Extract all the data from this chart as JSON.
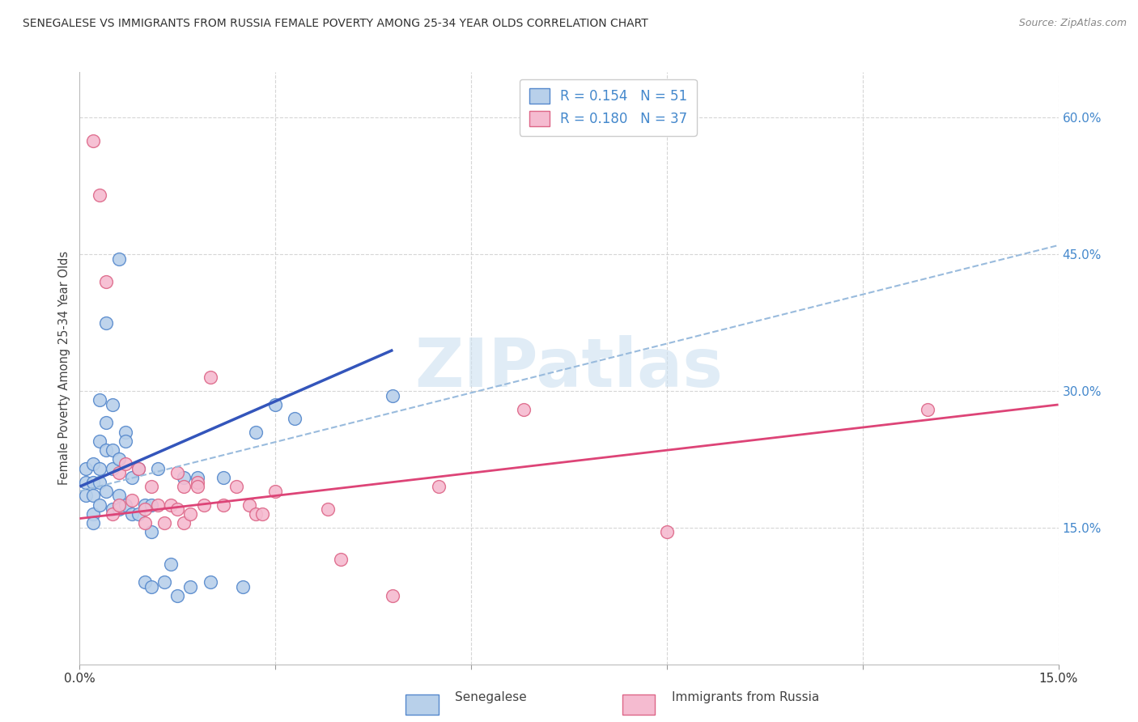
{
  "title": "SENEGALESE VS IMMIGRANTS FROM RUSSIA FEMALE POVERTY AMONG 25-34 YEAR OLDS CORRELATION CHART",
  "source": "Source: ZipAtlas.com",
  "ylabel": "Female Poverty Among 25-34 Year Olds",
  "xlim": [
    0.0,
    0.15
  ],
  "ylim": [
    0.0,
    0.65
  ],
  "xticks": [
    0.0,
    0.03,
    0.06,
    0.09,
    0.12,
    0.15
  ],
  "yticks_right": [
    0.0,
    0.15,
    0.3,
    0.45,
    0.6
  ],
  "ytick_labels_right": [
    "",
    "15.0%",
    "30.0%",
    "45.0%",
    "60.0%"
  ],
  "xtick_labels": [
    "0.0%",
    "",
    "",
    "",
    "",
    "15.0%"
  ],
  "background_color": "#ffffff",
  "grid_color": "#cccccc",
  "blue_scatter_face": "#b8d0ea",
  "blue_scatter_edge": "#5588cc",
  "pink_scatter_face": "#f5bbd0",
  "pink_scatter_edge": "#dd6688",
  "blue_line_color": "#3355bb",
  "pink_line_color": "#dd4477",
  "dashed_line_color": "#99bbdd",
  "legend_R1": "0.154",
  "legend_N1": "51",
  "legend_R2": "0.180",
  "legend_N2": "37",
  "label1": "Senegalese",
  "label2": "Immigrants from Russia",
  "senegalese_x": [
    0.001,
    0.001,
    0.001,
    0.002,
    0.002,
    0.002,
    0.002,
    0.002,
    0.003,
    0.003,
    0.003,
    0.003,
    0.003,
    0.004,
    0.004,
    0.004,
    0.004,
    0.005,
    0.005,
    0.005,
    0.005,
    0.006,
    0.006,
    0.006,
    0.006,
    0.007,
    0.007,
    0.007,
    0.008,
    0.008,
    0.009,
    0.009,
    0.01,
    0.01,
    0.011,
    0.011,
    0.011,
    0.012,
    0.013,
    0.014,
    0.015,
    0.016,
    0.017,
    0.018,
    0.02,
    0.022,
    0.025,
    0.027,
    0.03,
    0.033,
    0.048
  ],
  "senegalese_y": [
    0.215,
    0.2,
    0.185,
    0.22,
    0.2,
    0.185,
    0.165,
    0.155,
    0.29,
    0.245,
    0.215,
    0.2,
    0.175,
    0.375,
    0.265,
    0.235,
    0.19,
    0.285,
    0.235,
    0.215,
    0.17,
    0.445,
    0.225,
    0.185,
    0.17,
    0.255,
    0.245,
    0.175,
    0.205,
    0.165,
    0.215,
    0.165,
    0.175,
    0.09,
    0.145,
    0.085,
    0.175,
    0.215,
    0.09,
    0.11,
    0.075,
    0.205,
    0.085,
    0.205,
    0.09,
    0.205,
    0.085,
    0.255,
    0.285,
    0.27,
    0.295
  ],
  "russia_x": [
    0.002,
    0.003,
    0.004,
    0.005,
    0.006,
    0.006,
    0.007,
    0.008,
    0.009,
    0.01,
    0.01,
    0.011,
    0.012,
    0.013,
    0.014,
    0.015,
    0.015,
    0.016,
    0.016,
    0.017,
    0.018,
    0.018,
    0.019,
    0.02,
    0.022,
    0.024,
    0.026,
    0.027,
    0.028,
    0.03,
    0.038,
    0.04,
    0.048,
    0.055,
    0.068,
    0.09,
    0.13
  ],
  "russia_y": [
    0.575,
    0.515,
    0.42,
    0.165,
    0.21,
    0.175,
    0.22,
    0.18,
    0.215,
    0.17,
    0.155,
    0.195,
    0.175,
    0.155,
    0.175,
    0.21,
    0.17,
    0.155,
    0.195,
    0.165,
    0.2,
    0.195,
    0.175,
    0.315,
    0.175,
    0.195,
    0.175,
    0.165,
    0.165,
    0.19,
    0.17,
    0.115,
    0.075,
    0.195,
    0.28,
    0.145,
    0.28
  ],
  "blue_trend_x": [
    0.0,
    0.048
  ],
  "blue_trend_y": [
    0.195,
    0.345
  ],
  "pink_trend_x": [
    0.0,
    0.15
  ],
  "pink_trend_y": [
    0.16,
    0.285
  ],
  "dashed_trend_x": [
    0.0,
    0.15
  ],
  "dashed_trend_y": [
    0.19,
    0.46
  ],
  "watermark_text": "ZIPatlas",
  "watermark_color": "#cce0f0",
  "watermark_alpha": 0.6
}
